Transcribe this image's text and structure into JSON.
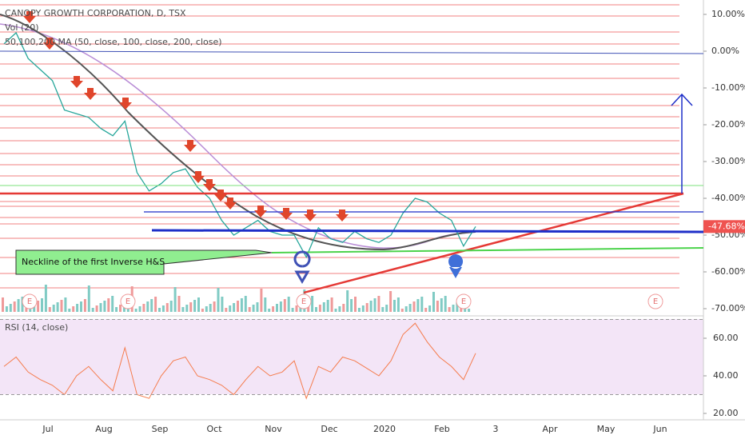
{
  "header": {
    "title": "CANOPY GROWTH CORPORATION, D, TSX",
    "volume": "Vol (20)",
    "ma": "50,100,200 MA (50, close, 100, close, 200, close)",
    "rsi": "RSI (14, close)"
  },
  "price_axis": {
    "ticks": [
      {
        "value": 10,
        "label": "10.00%"
      },
      {
        "value": 0,
        "label": "0.00%"
      },
      {
        "value": -10,
        "label": "-10.00%"
      },
      {
        "value": -20,
        "label": "-20.00%"
      },
      {
        "value": -30,
        "label": "-30.00%"
      },
      {
        "value": -40,
        "label": "-40.00%"
      },
      {
        "value": -50,
        "label": "-50.00%"
      },
      {
        "value": -60,
        "label": "-60.00%"
      },
      {
        "value": -70,
        "label": "-70.00%"
      }
    ],
    "last": {
      "value": -47.68,
      "label": "-47.68%"
    }
  },
  "rsi_axis": {
    "ticks": [
      {
        "value": 60,
        "label": "60.00"
      },
      {
        "value": 40,
        "label": "40.00"
      },
      {
        "value": 20,
        "label": "20.00"
      }
    ],
    "band": [
      30,
      70
    ]
  },
  "time_axis": [
    "Jul",
    "Aug",
    "Sep",
    "Oct",
    "Nov",
    "Dec",
    "2020",
    "Feb",
    "3",
    "Apr",
    "May",
    "Jun"
  ],
  "price": [
    2,
    5,
    -2,
    -5,
    -8,
    -16,
    -17,
    -18,
    -21,
    -23,
    -19,
    -33,
    -38,
    -36,
    -33,
    -32,
    -37,
    -40,
    -46,
    -50,
    -48,
    -46,
    -49,
    -50,
    -50,
    -56,
    -48,
    -51,
    -52,
    -49,
    -51,
    -52,
    -50,
    -44,
    -40,
    -41,
    -44,
    -46,
    -53,
    -47.68
  ],
  "rsi": [
    45,
    50,
    42,
    38,
    35,
    30,
    40,
    45,
    38,
    32,
    55,
    30,
    28,
    40,
    48,
    50,
    40,
    38,
    35,
    30,
    38,
    45,
    40,
    42,
    48,
    28,
    45,
    42,
    50,
    48,
    44,
    40,
    48,
    62,
    68,
    58,
    50,
    45,
    38,
    52
  ],
  "earnings": [
    "E",
    "E",
    "E",
    "E",
    "E"
  ],
  "annotation": "Neckline of the first Inverse H&S"
}
